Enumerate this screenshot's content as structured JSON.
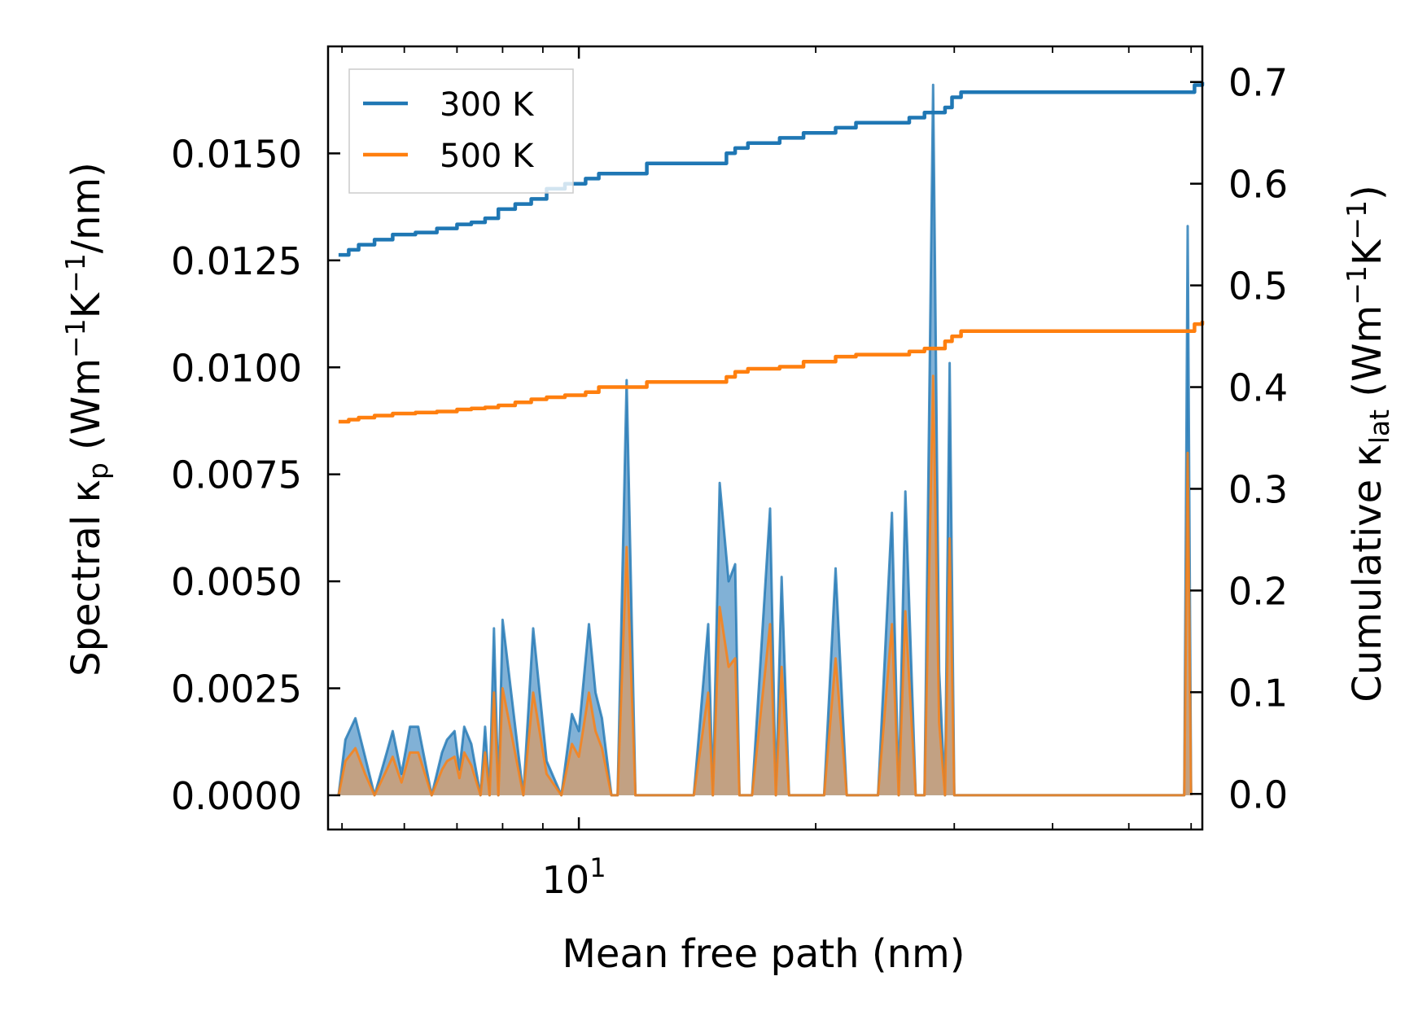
{
  "chart_data": {
    "type": "line",
    "x_scale": "log",
    "xlim": [
      4.8,
      62
    ],
    "xlabel": "Mean free path (nm)",
    "x_tick_labels": [
      {
        "value": 10,
        "base": "10",
        "exp": "1"
      }
    ],
    "left_axis": {
      "label_prefix": "Spectral κ",
      "label_sub": "p",
      "label_suffix": " (Wm",
      "label_unit_parts": [
        "−1",
        "K",
        "−1",
        "/nm)"
      ],
      "ylim": [
        -0.0008,
        0.0175
      ],
      "ticks": [
        0.0,
        0.0025,
        0.005,
        0.0075,
        0.01,
        0.0125,
        0.015
      ],
      "tick_labels": [
        "0.0000",
        "0.0025",
        "0.0050",
        "0.0075",
        "0.0100",
        "0.0125",
        "0.0150"
      ]
    },
    "right_axis": {
      "label_prefix": "Cumulative κ",
      "label_sub": "lat",
      "label_suffix": " (Wm",
      "label_unit_parts": [
        "−1",
        "K",
        "−1",
        ")"
      ],
      "ylim": [
        -0.035,
        0.735
      ],
      "ticks": [
        0.0,
        0.1,
        0.2,
        0.3,
        0.4,
        0.5,
        0.6,
        0.7
      ],
      "tick_labels": [
        "0.0",
        "0.1",
        "0.2",
        "0.3",
        "0.4",
        "0.5",
        "0.6",
        "0.7"
      ]
    },
    "legend": {
      "position": "top-left",
      "entries": [
        "300 K",
        "500 K"
      ]
    },
    "colors": {
      "300 K": "#1f77b4",
      "500 K": "#ff7f0e",
      "fill_300": "#6ba3cf",
      "fill_500": "#c9a07a"
    },
    "cumulative": {
      "x": [
        4.95,
        5.1,
        5.25,
        5.5,
        5.8,
        6.2,
        6.6,
        7.0,
        7.3,
        7.6,
        7.9,
        8.3,
        8.7,
        9.1,
        9.6,
        10.2,
        10.6,
        11.0,
        11.5,
        12.2,
        12.6,
        14.2,
        15.4,
        15.8,
        16.4,
        18.0,
        18.5,
        19.3,
        21.2,
        22.5,
        25.0,
        26.3,
        27.5,
        29.2,
        29.8,
        30.6,
        32.6,
        40.0,
        50.0,
        60.0,
        60.6,
        62.0
      ],
      "series": [
        {
          "name": "300 K",
          "values": [
            0.53,
            0.535,
            0.54,
            0.545,
            0.55,
            0.552,
            0.556,
            0.56,
            0.562,
            0.566,
            0.575,
            0.58,
            0.585,
            0.595,
            0.6,
            0.605,
            0.61,
            0.61,
            0.61,
            0.62,
            0.62,
            0.62,
            0.63,
            0.635,
            0.64,
            0.645,
            0.645,
            0.65,
            0.655,
            0.66,
            0.66,
            0.665,
            0.67,
            0.675,
            0.685,
            0.69,
            0.69,
            0.69,
            0.69,
            0.69,
            0.697,
            0.7
          ]
        },
        {
          "name": "500 K",
          "values": [
            0.366,
            0.368,
            0.37,
            0.372,
            0.374,
            0.375,
            0.376,
            0.378,
            0.379,
            0.38,
            0.382,
            0.385,
            0.388,
            0.39,
            0.392,
            0.395,
            0.4,
            0.4,
            0.4,
            0.405,
            0.405,
            0.405,
            0.41,
            0.415,
            0.418,
            0.42,
            0.42,
            0.425,
            0.43,
            0.432,
            0.432,
            0.435,
            0.438,
            0.445,
            0.45,
            0.455,
            0.455,
            0.455,
            0.455,
            0.455,
            0.462,
            0.465
          ]
        }
      ]
    },
    "spectral": {
      "x": [
        4.95,
        5.05,
        5.2,
        5.35,
        5.5,
        5.7,
        5.8,
        5.95,
        6.1,
        6.25,
        6.5,
        6.7,
        6.8,
        6.95,
        7.05,
        7.15,
        7.3,
        7.5,
        7.6,
        7.7,
        7.8,
        7.9,
        8.0,
        8.5,
        8.75,
        9.1,
        9.5,
        9.8,
        10.0,
        10.3,
        10.5,
        10.7,
        11.0,
        11.2,
        11.5,
        11.8,
        12.2,
        12.4,
        12.7,
        14.0,
        14.6,
        14.8,
        15.1,
        15.5,
        15.8,
        16.0,
        16.3,
        16.6,
        17.5,
        17.8,
        18.1,
        18.5,
        18.8,
        19.2,
        20.5,
        21.2,
        21.9,
        24.0,
        25.0,
        25.5,
        26.0,
        26.8,
        27.5,
        28.2,
        28.7,
        29.2,
        29.6,
        30.0,
        30.5,
        31.0,
        31.6,
        32.2,
        57.0,
        57.6,
        58.2,
        58.8,
        59.4,
        60.0
      ],
      "series": [
        {
          "name": "300 K",
          "values": [
            0.0,
            0.0013,
            0.0018,
            0.0009,
            0.0,
            0.001,
            0.0015,
            0.0005,
            0.0016,
            0.0016,
            0.0,
            0.001,
            0.0013,
            0.0015,
            0.0006,
            0.0016,
            0.0012,
            0.0,
            0.0016,
            0.0,
            0.0039,
            0.0,
            0.0041,
            0.0,
            0.0039,
            0.0008,
            0.0,
            0.0019,
            0.0015,
            0.004,
            0.0024,
            0.0018,
            0.0,
            0.0,
            0.0097,
            0.0,
            0.0,
            0.0,
            0.0,
            0.0,
            0.004,
            0.0,
            0.0073,
            0.005,
            0.0054,
            0.0,
            0.0,
            0.0,
            0.0067,
            0.0,
            0.0051,
            0.0,
            0.0,
            0.0,
            0.0,
            0.0053,
            0.0,
            0.0,
            0.0066,
            0.0,
            0.0071,
            0.0,
            0.0,
            0.0166,
            0.0029,
            0.0,
            0.0101,
            0.0,
            0.0,
            0.0,
            0.0,
            0.0,
            0.0,
            0.0,
            0.0,
            0.0,
            0.0133,
            0.0
          ]
        },
        {
          "name": "500 K",
          "values": [
            0.0,
            0.0008,
            0.0011,
            0.0005,
            0.0,
            0.0006,
            0.0009,
            0.0003,
            0.001,
            0.001,
            0.0,
            0.0006,
            0.0008,
            0.0009,
            0.0004,
            0.001,
            0.0007,
            0.0,
            0.001,
            0.0,
            0.0024,
            0.0,
            0.0025,
            0.0,
            0.0024,
            0.0005,
            0.0,
            0.0012,
            0.0009,
            0.0024,
            0.0015,
            0.0011,
            0.0,
            0.0,
            0.0058,
            0.0,
            0.0,
            0.0,
            0.0,
            0.0,
            0.0024,
            0.0,
            0.0044,
            0.003,
            0.0032,
            0.0,
            0.0,
            0.0,
            0.004,
            0.0,
            0.003,
            0.0,
            0.0,
            0.0,
            0.0,
            0.0032,
            0.0,
            0.0,
            0.004,
            0.0,
            0.0043,
            0.0,
            0.0,
            0.0098,
            0.0017,
            0.0,
            0.006,
            0.0,
            0.0,
            0.0,
            0.0,
            0.0,
            0.0,
            0.0,
            0.0,
            0.0,
            0.008,
            0.0
          ]
        }
      ]
    }
  }
}
